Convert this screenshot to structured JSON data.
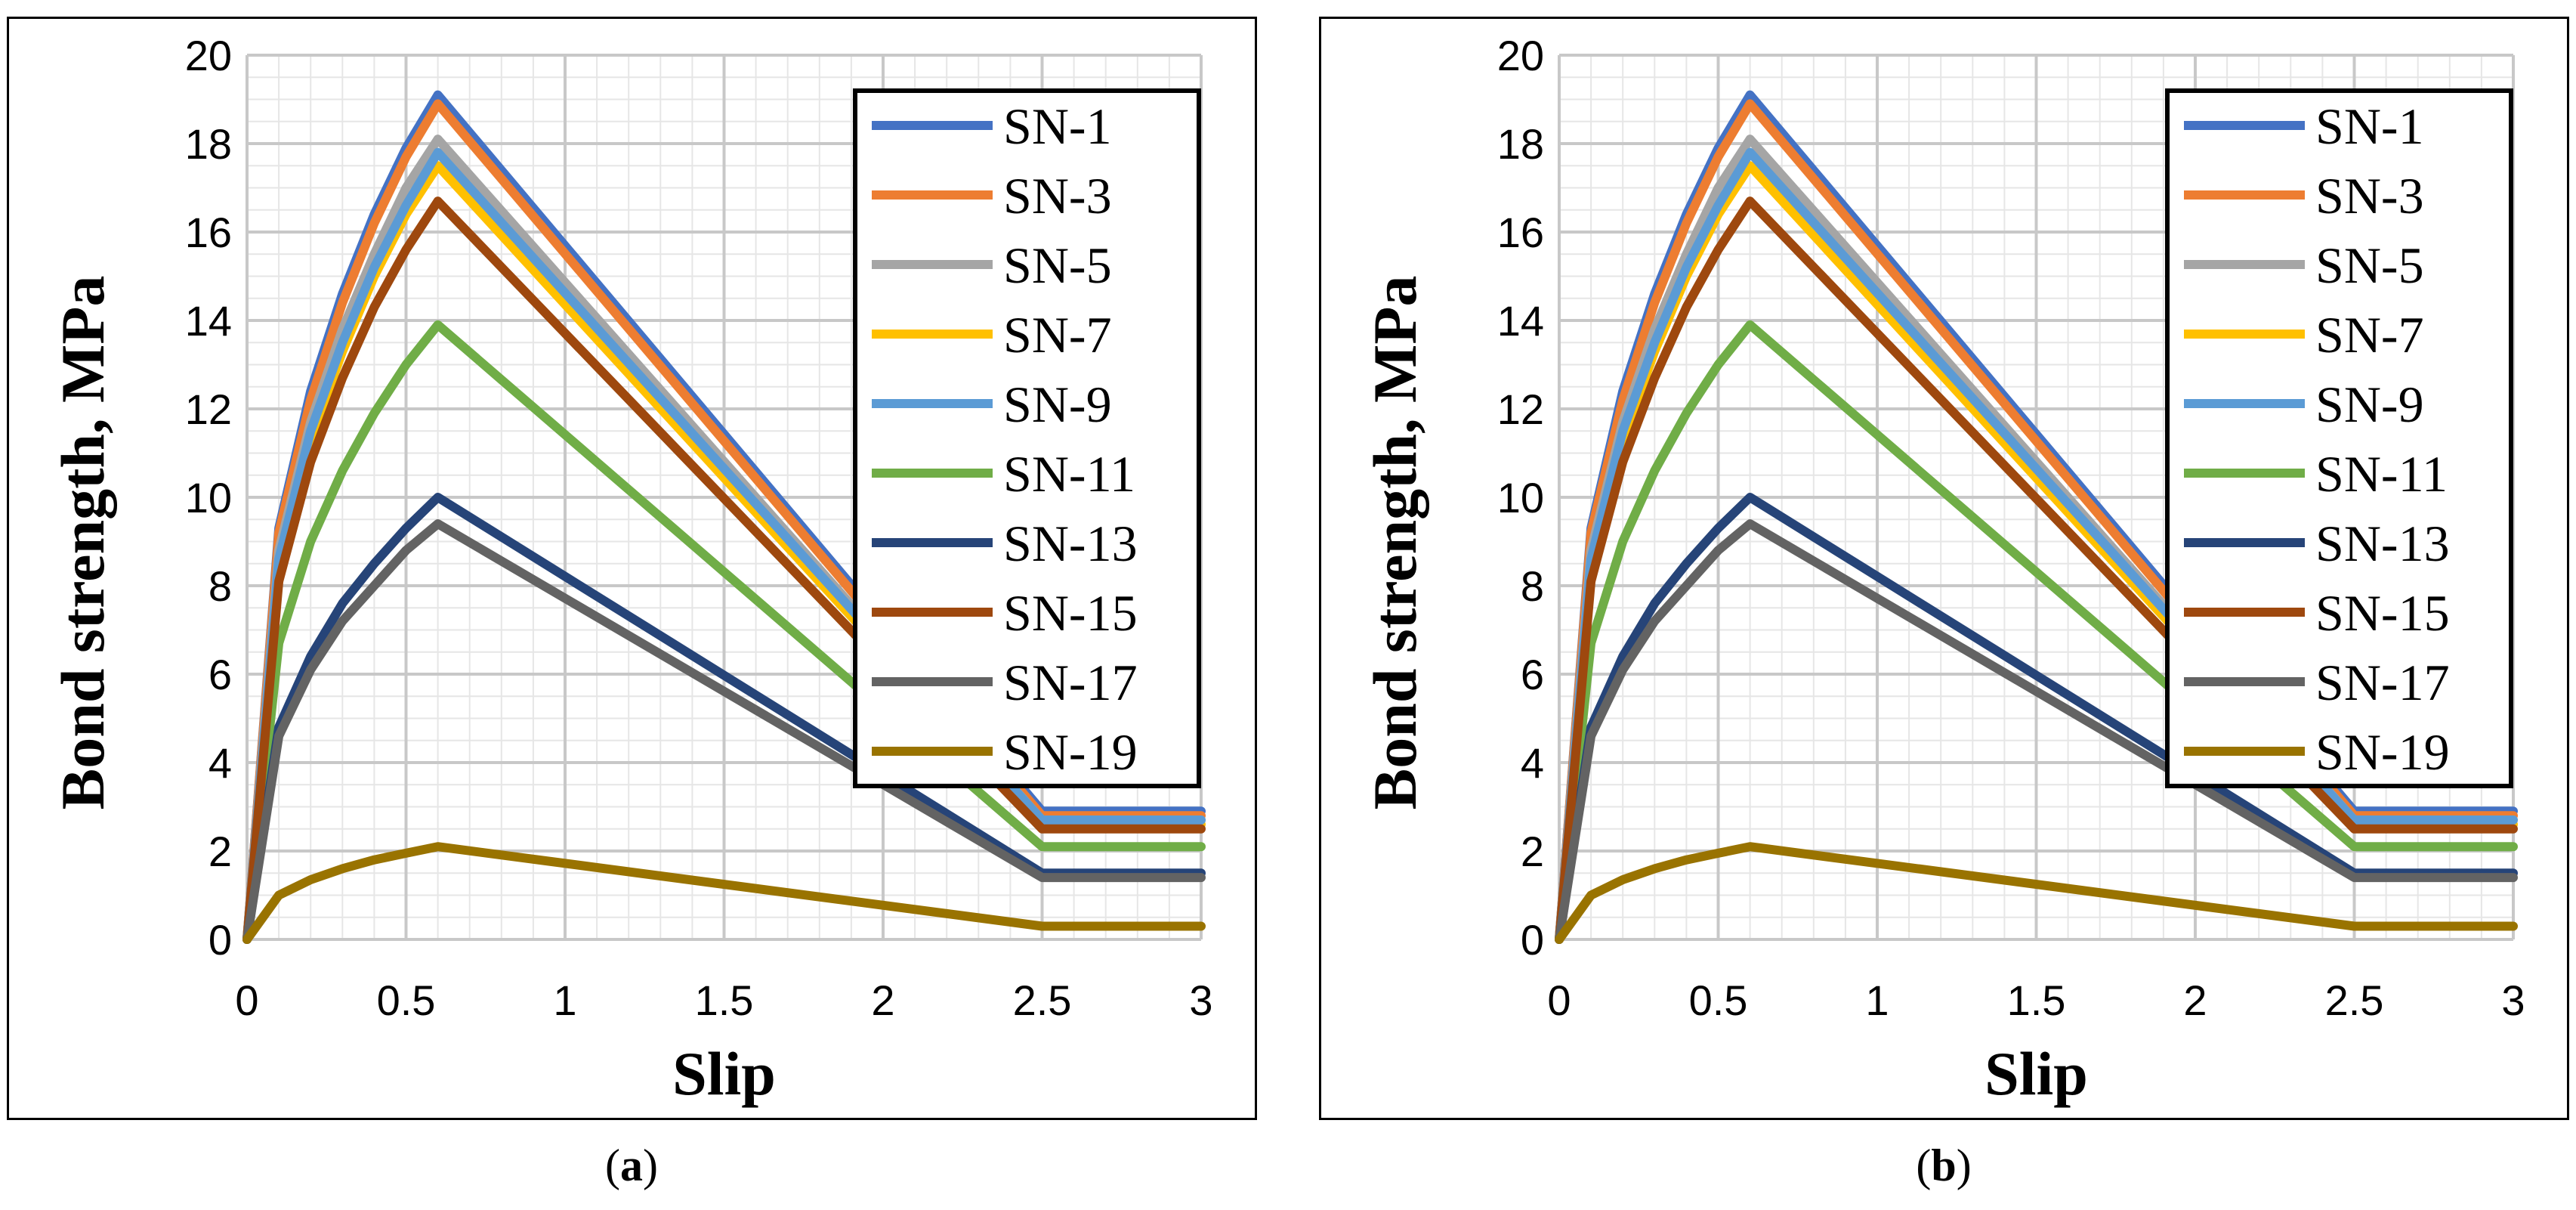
{
  "chart_data": [
    {
      "type": "line",
      "panel": "a",
      "caption_letter": "a",
      "xlabel": "Slip",
      "ylabel": "Bond strength, MPa",
      "xlim": [
        0,
        3
      ],
      "ylim": [
        0,
        20
      ],
      "x_ticks": [
        "0",
        "0.5",
        "1",
        "1.5",
        "2",
        "2.5",
        "3"
      ],
      "y_ticks": [
        "0",
        "2",
        "4",
        "6",
        "8",
        "10",
        "12",
        "14",
        "16",
        "18",
        "20"
      ],
      "legend_position": "top-right",
      "x": [
        0,
        0.1,
        0.2,
        0.3,
        0.4,
        0.5,
        0.6,
        2.5,
        3
      ],
      "series": [
        {
          "name": "SN-1",
          "color": "#4472C4",
          "values": [
            0,
            9.3,
            12.4,
            14.6,
            16.4,
            17.9,
            19.1,
            2.9,
            2.9
          ]
        },
        {
          "name": "SN-3",
          "color": "#ED7D31",
          "values": [
            0,
            9.2,
            12.2,
            14.4,
            16.2,
            17.7,
            18.9,
            2.8,
            2.8
          ]
        },
        {
          "name": "SN-5",
          "color": "#A5A5A5",
          "values": [
            0,
            8.8,
            11.7,
            13.8,
            15.5,
            17.0,
            18.1,
            2.7,
            2.7
          ]
        },
        {
          "name": "SN-7",
          "color": "#FFC000",
          "values": [
            0,
            8.5,
            11.3,
            13.3,
            15.0,
            16.4,
            17.5,
            2.6,
            2.6
          ]
        },
        {
          "name": "SN-9",
          "color": "#5B9BD5",
          "values": [
            0,
            8.6,
            11.5,
            13.5,
            15.2,
            16.6,
            17.8,
            2.7,
            2.7
          ]
        },
        {
          "name": "SN-11",
          "color": "#70AD47",
          "values": [
            0,
            6.7,
            9.0,
            10.6,
            11.9,
            13.0,
            13.9,
            2.1,
            2.1
          ]
        },
        {
          "name": "SN-13",
          "color": "#264478",
          "values": [
            0,
            4.8,
            6.4,
            7.6,
            8.5,
            9.3,
            10.0,
            1.5,
            1.5
          ]
        },
        {
          "name": "SN-15",
          "color": "#9E480E",
          "values": [
            0,
            8.1,
            10.8,
            12.7,
            14.3,
            15.6,
            16.7,
            2.5,
            2.5
          ]
        },
        {
          "name": "SN-17",
          "color": "#636363",
          "values": [
            0,
            4.6,
            6.1,
            7.2,
            8.0,
            8.8,
            9.4,
            1.4,
            1.4
          ]
        },
        {
          "name": "SN-19",
          "color": "#997300",
          "values": [
            0,
            1.0,
            1.35,
            1.6,
            1.8,
            1.95,
            2.1,
            0.3,
            0.3
          ]
        }
      ]
    },
    {
      "type": "line",
      "panel": "b",
      "caption_letter": "b",
      "xlabel": "Slip",
      "ylabel": "Bond strength, MPa",
      "xlim": [
        0,
        3
      ],
      "ylim": [
        0,
        20
      ],
      "x_ticks": [
        "0",
        "0.5",
        "1",
        "1.5",
        "2",
        "2.5",
        "3"
      ],
      "y_ticks": [
        "0",
        "2",
        "4",
        "6",
        "8",
        "10",
        "12",
        "14",
        "16",
        "18",
        "20"
      ],
      "legend_position": "top-right",
      "x": [
        0,
        0.1,
        0.2,
        0.3,
        0.4,
        0.5,
        0.6,
        2.5,
        3
      ],
      "series": [
        {
          "name": "SN-1",
          "color": "#4472C4",
          "values": [
            0,
            9.3,
            12.4,
            14.6,
            16.4,
            17.9,
            19.1,
            2.9,
            2.9
          ]
        },
        {
          "name": "SN-3",
          "color": "#ED7D31",
          "values": [
            0,
            9.2,
            12.2,
            14.4,
            16.2,
            17.7,
            18.9,
            2.8,
            2.8
          ]
        },
        {
          "name": "SN-5",
          "color": "#A5A5A5",
          "values": [
            0,
            8.8,
            11.7,
            13.8,
            15.5,
            17.0,
            18.1,
            2.7,
            2.7
          ]
        },
        {
          "name": "SN-7",
          "color": "#FFC000",
          "values": [
            0,
            8.5,
            11.3,
            13.3,
            15.0,
            16.4,
            17.5,
            2.6,
            2.6
          ]
        },
        {
          "name": "SN-9",
          "color": "#5B9BD5",
          "values": [
            0,
            8.6,
            11.5,
            13.5,
            15.2,
            16.6,
            17.8,
            2.7,
            2.7
          ]
        },
        {
          "name": "SN-11",
          "color": "#70AD47",
          "values": [
            0,
            6.7,
            9.0,
            10.6,
            11.9,
            13.0,
            13.9,
            2.1,
            2.1
          ]
        },
        {
          "name": "SN-13",
          "color": "#264478",
          "values": [
            0,
            4.8,
            6.4,
            7.6,
            8.5,
            9.3,
            10.0,
            1.5,
            1.5
          ]
        },
        {
          "name": "SN-15",
          "color": "#9E480E",
          "values": [
            0,
            8.1,
            10.8,
            12.7,
            14.3,
            15.6,
            16.7,
            2.5,
            2.5
          ]
        },
        {
          "name": "SN-17",
          "color": "#636363",
          "values": [
            0,
            4.6,
            6.1,
            7.2,
            8.0,
            8.8,
            9.4,
            1.4,
            1.4
          ]
        },
        {
          "name": "SN-19",
          "color": "#997300",
          "values": [
            0,
            1.0,
            1.35,
            1.6,
            1.8,
            1.95,
            2.1,
            0.3,
            0.3
          ]
        }
      ]
    }
  ]
}
